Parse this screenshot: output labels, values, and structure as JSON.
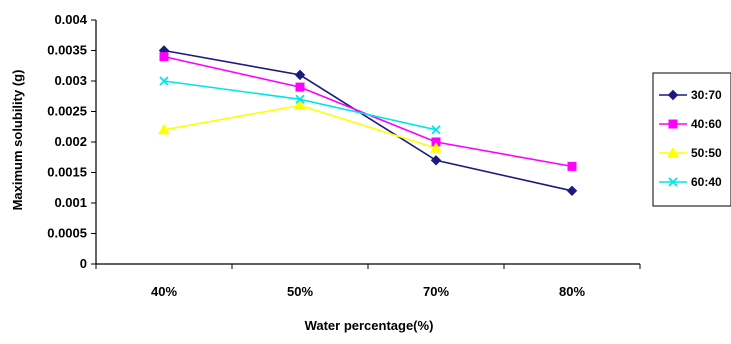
{
  "chart_data": {
    "type": "line",
    "title": "",
    "xlabel": "Water percentage(%)",
    "ylabel": "Maximum solubility (g)",
    "categories": [
      "40%",
      "50%",
      "70%",
      "80%"
    ],
    "yticks": [
      "0",
      "0.0005",
      "0.001",
      "0.0015",
      "0.002",
      "0.0025",
      "0.003",
      "0.0035",
      "0.004"
    ],
    "ylim": [
      0,
      0.004
    ],
    "grid": false,
    "legend_position": "right",
    "series": [
      {
        "name": "30:70",
        "color": "#1a1a80",
        "marker": "diamond",
        "values": [
          0.0035,
          0.0031,
          0.0017,
          0.0012
        ]
      },
      {
        "name": "40:60",
        "color": "#ff00ff",
        "marker": "square",
        "values": [
          0.0034,
          0.0029,
          0.002,
          0.0016
        ]
      },
      {
        "name": "50:50",
        "color": "#ffff00",
        "marker": "triangle",
        "values": [
          0.0022,
          0.0026,
          0.0019,
          null
        ]
      },
      {
        "name": "60:40",
        "color": "#00e6e6",
        "marker": "x",
        "values": [
          0.003,
          0.0027,
          0.0022,
          null
        ]
      }
    ]
  }
}
